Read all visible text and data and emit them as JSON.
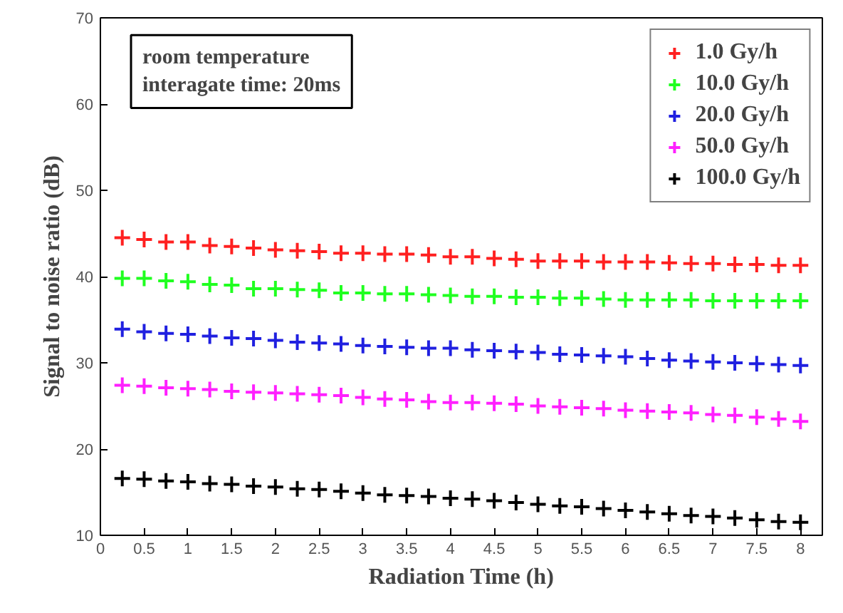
{
  "chart_data": {
    "type": "scatter",
    "xlabel": "Radiation Time (h)",
    "ylabel": "Signal to noise ratio (dB)",
    "x": [
      0.25,
      0.5,
      0.75,
      1,
      1.25,
      1.5,
      1.75,
      2,
      2.25,
      2.5,
      2.75,
      3,
      3.25,
      3.5,
      3.75,
      4,
      4.25,
      4.5,
      4.75,
      5,
      5.25,
      5.5,
      5.75,
      6,
      6.25,
      6.5,
      6.75,
      7,
      7.25,
      7.5,
      7.75,
      8
    ],
    "series": [
      {
        "name": "1.0 Gy/h",
        "color": "#ff2020",
        "values": [
          44.5,
          44.3,
          44.0,
          44.0,
          43.6,
          43.5,
          43.3,
          43.1,
          43.0,
          42.9,
          42.7,
          42.7,
          42.6,
          42.6,
          42.5,
          42.3,
          42.3,
          42.1,
          42.0,
          41.8,
          41.8,
          41.8,
          41.7,
          41.7,
          41.7,
          41.6,
          41.5,
          41.5,
          41.4,
          41.4,
          41.3,
          41.3
        ]
      },
      {
        "name": "10.0 Gy/h",
        "color": "#20ff20",
        "values": [
          39.8,
          39.8,
          39.5,
          39.4,
          39.1,
          39.0,
          38.6,
          38.6,
          38.5,
          38.4,
          38.1,
          38.1,
          38.0,
          38.0,
          37.9,
          37.8,
          37.7,
          37.7,
          37.6,
          37.6,
          37.5,
          37.5,
          37.4,
          37.3,
          37.3,
          37.3,
          37.3,
          37.2,
          37.2,
          37.2,
          37.2,
          37.2
        ]
      },
      {
        "name": "20.0 Gy/h",
        "color": "#2020e0",
        "values": [
          33.9,
          33.6,
          33.4,
          33.3,
          33.1,
          32.9,
          32.8,
          32.6,
          32.4,
          32.3,
          32.2,
          32.0,
          31.9,
          31.8,
          31.7,
          31.7,
          31.5,
          31.4,
          31.3,
          31.2,
          31.0,
          30.9,
          30.8,
          30.7,
          30.5,
          30.3,
          30.2,
          30.1,
          30.0,
          29.9,
          29.8,
          29.7
        ]
      },
      {
        "name": "50.0 Gy/h",
        "color": "#ff20ff",
        "values": [
          27.4,
          27.3,
          27.1,
          27.0,
          26.9,
          26.7,
          26.6,
          26.5,
          26.4,
          26.3,
          26.2,
          26.0,
          25.8,
          25.7,
          25.5,
          25.4,
          25.4,
          25.3,
          25.2,
          25.0,
          24.9,
          24.8,
          24.7,
          24.5,
          24.4,
          24.3,
          24.2,
          24.0,
          23.9,
          23.7,
          23.5,
          23.2
        ]
      },
      {
        "name": "100.0 Gy/h",
        "color": "#000000",
        "values": [
          16.6,
          16.5,
          16.3,
          16.2,
          16.0,
          15.9,
          15.7,
          15.6,
          15.4,
          15.3,
          15.1,
          14.9,
          14.7,
          14.6,
          14.5,
          14.3,
          14.2,
          14.0,
          13.8,
          13.6,
          13.4,
          13.3,
          13.1,
          12.9,
          12.7,
          12.5,
          12.3,
          12.2,
          12.0,
          11.8,
          11.6,
          11.5
        ]
      }
    ],
    "annotations": [
      "room temperature\ninteragate time: 20ms"
    ],
    "xlim": [
      0,
      8.25
    ],
    "ylim": [
      10,
      70
    ],
    "xticks": [
      0,
      0.5,
      1,
      1.5,
      2,
      2.5,
      3,
      3.5,
      4,
      4.5,
      5,
      5.5,
      6,
      6.5,
      7,
      7.5,
      8
    ],
    "yticks": [
      10,
      20,
      30,
      40,
      50,
      60,
      70
    ],
    "marker": "cross",
    "legend": "top right",
    "grid": false
  }
}
